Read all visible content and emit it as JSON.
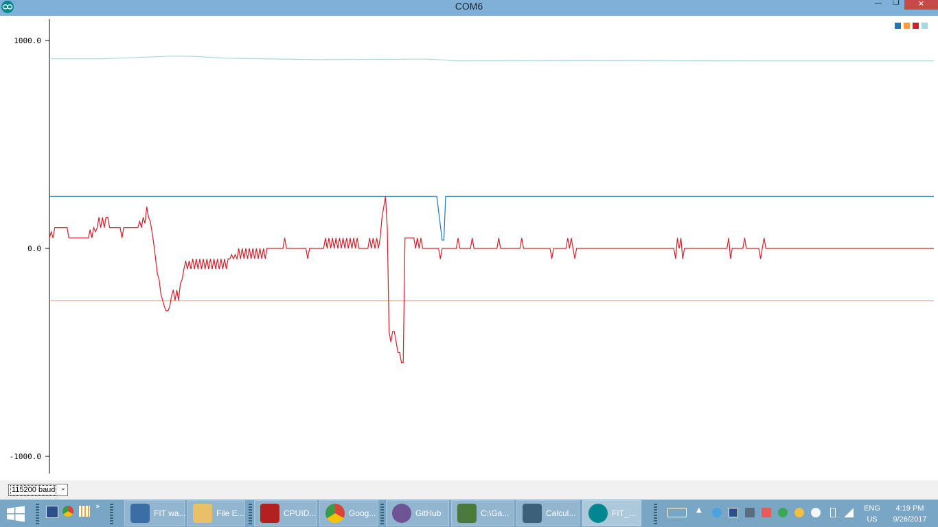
{
  "window": {
    "title": "COM6",
    "min_glyph": "—",
    "max_glyph": "❐",
    "close_glyph": "✕"
  },
  "chart_data": {
    "type": "line",
    "ylim": [
      -1000,
      1000
    ],
    "yticks": [
      "1000.0",
      "0.0",
      "-1000.0"
    ],
    "ytick_values": [
      1000,
      0,
      -1000
    ],
    "grid": false,
    "legend_position": "top-right",
    "samples": 500,
    "series": [
      {
        "color": "#1f77b4",
        "description": "constant with a single dip",
        "points": [
          [
            0,
            250
          ],
          [
            219,
            250
          ],
          [
            222,
            40
          ],
          [
            223,
            40
          ],
          [
            224,
            250
          ],
          [
            500,
            250
          ]
        ]
      },
      {
        "color": "#ff9f40",
        "points": [
          [
            0,
            -250
          ],
          [
            500,
            -250
          ]
        ]
      },
      {
        "color": "#d0202a",
        "points": [
          [
            0,
            50
          ],
          [
            1,
            80
          ],
          [
            2,
            50
          ],
          [
            3,
            100
          ],
          [
            6,
            100
          ],
          [
            8,
            100
          ],
          [
            10,
            100
          ],
          [
            11,
            50
          ],
          [
            15,
            50
          ],
          [
            20,
            50
          ],
          [
            22,
            50
          ],
          [
            23,
            90
          ],
          [
            24,
            50
          ],
          [
            25,
            100
          ],
          [
            26,
            80
          ],
          [
            27,
            100
          ],
          [
            28,
            150
          ],
          [
            29,
            100
          ],
          [
            30,
            150
          ],
          [
            31,
            100
          ],
          [
            32,
            150
          ],
          [
            33,
            150
          ],
          [
            34,
            100
          ],
          [
            40,
            100
          ],
          [
            41,
            50
          ],
          [
            42,
            100
          ],
          [
            50,
            100
          ],
          [
            51,
            130
          ],
          [
            52,
            100
          ],
          [
            53,
            150
          ],
          [
            54,
            120
          ],
          [
            55,
            200
          ],
          [
            56,
            150
          ],
          [
            57,
            130
          ],
          [
            58,
            80
          ],
          [
            59,
            20
          ],
          [
            60,
            -50
          ],
          [
            61,
            -120
          ],
          [
            62,
            -150
          ],
          [
            63,
            -220
          ],
          [
            64,
            -250
          ],
          [
            65,
            -280
          ],
          [
            66,
            -300
          ],
          [
            67,
            -300
          ],
          [
            68,
            -280
          ],
          [
            69,
            -230
          ],
          [
            70,
            -200
          ],
          [
            71,
            -250
          ],
          [
            72,
            -200
          ],
          [
            73,
            -250
          ],
          [
            74,
            -170
          ],
          [
            75,
            -150
          ],
          [
            76,
            -100
          ],
          [
            77,
            -60
          ],
          [
            78,
            -100
          ],
          [
            79,
            -60
          ],
          [
            80,
            -100
          ],
          [
            81,
            -50
          ],
          [
            82,
            -100
          ],
          [
            83,
            -50
          ],
          [
            84,
            -100
          ],
          [
            85,
            -50
          ],
          [
            86,
            -100
          ],
          [
            87,
            -50
          ],
          [
            88,
            -100
          ],
          [
            89,
            -50
          ],
          [
            90,
            -100
          ],
          [
            91,
            -50
          ],
          [
            92,
            -100
          ],
          [
            93,
            -50
          ],
          [
            94,
            -100
          ],
          [
            95,
            -50
          ],
          [
            96,
            -100
          ],
          [
            97,
            -50
          ],
          [
            98,
            -100
          ],
          [
            99,
            -50
          ],
          [
            100,
            -100
          ],
          [
            101,
            -50
          ],
          [
            102,
            -50
          ],
          [
            103,
            -30
          ],
          [
            104,
            -50
          ],
          [
            105,
            -30
          ],
          [
            106,
            -50
          ],
          [
            107,
            0
          ],
          [
            108,
            -50
          ],
          [
            109,
            0
          ],
          [
            110,
            -50
          ],
          [
            111,
            0
          ],
          [
            112,
            -50
          ],
          [
            113,
            0
          ],
          [
            114,
            -50
          ],
          [
            115,
            0
          ],
          [
            116,
            -50
          ],
          [
            117,
            0
          ],
          [
            118,
            -50
          ],
          [
            119,
            0
          ],
          [
            120,
            -50
          ],
          [
            121,
            0
          ],
          [
            122,
            -50
          ],
          [
            123,
            0
          ],
          [
            124,
            0
          ],
          [
            125,
            0
          ],
          [
            130,
            0
          ],
          [
            132,
            0
          ],
          [
            133,
            50
          ],
          [
            134,
            0
          ],
          [
            145,
            0
          ],
          [
            146,
            -50
          ],
          [
            147,
            0
          ],
          [
            155,
            0
          ],
          [
            156,
            50
          ],
          [
            157,
            0
          ],
          [
            158,
            50
          ],
          [
            159,
            0
          ],
          [
            160,
            50
          ],
          [
            161,
            0
          ],
          [
            162,
            50
          ],
          [
            163,
            0
          ],
          [
            164,
            50
          ],
          [
            165,
            0
          ],
          [
            166,
            50
          ],
          [
            167,
            0
          ],
          [
            168,
            50
          ],
          [
            169,
            0
          ],
          [
            170,
            50
          ],
          [
            171,
            0
          ],
          [
            172,
            50
          ],
          [
            173,
            0
          ],
          [
            174,
            50
          ],
          [
            175,
            0
          ],
          [
            180,
            0
          ],
          [
            181,
            50
          ],
          [
            182,
            0
          ],
          [
            183,
            50
          ],
          [
            184,
            0
          ],
          [
            185,
            50
          ],
          [
            186,
            0
          ],
          [
            187,
            50
          ],
          [
            188,
            150
          ],
          [
            189,
            200
          ],
          [
            190,
            250
          ],
          [
            191,
            100
          ],
          [
            192,
            -400
          ],
          [
            193,
            -450
          ],
          [
            194,
            -400
          ],
          [
            195,
            -400
          ],
          [
            196,
            -450
          ],
          [
            197,
            -500
          ],
          [
            198,
            -500
          ],
          [
            199,
            -550
          ],
          [
            200,
            -550
          ],
          [
            201,
            50
          ],
          [
            202,
            50
          ],
          [
            205,
            50
          ],
          [
            206,
            50
          ],
          [
            207,
            0
          ],
          [
            208,
            50
          ],
          [
            209,
            0
          ],
          [
            210,
            50
          ],
          [
            211,
            0
          ],
          [
            213,
            0
          ],
          [
            215,
            0
          ],
          [
            220,
            0
          ],
          [
            221,
            -50
          ],
          [
            222,
            0
          ],
          [
            230,
            0
          ],
          [
            231,
            50
          ],
          [
            232,
            0
          ],
          [
            238,
            0
          ],
          [
            239,
            50
          ],
          [
            240,
            0
          ],
          [
            253,
            0
          ],
          [
            254,
            50
          ],
          [
            255,
            0
          ],
          [
            266,
            0
          ],
          [
            267,
            50
          ],
          [
            268,
            0
          ],
          [
            283,
            0
          ],
          [
            284,
            -50
          ],
          [
            285,
            0
          ],
          [
            292,
            0
          ],
          [
            293,
            50
          ],
          [
            294,
            0
          ],
          [
            295,
            50
          ],
          [
            296,
            0
          ],
          [
            297,
            -50
          ],
          [
            298,
            0
          ],
          [
            353,
            0
          ],
          [
            354,
            -50
          ],
          [
            355,
            50
          ],
          [
            356,
            0
          ],
          [
            357,
            50
          ],
          [
            358,
            -50
          ],
          [
            359,
            0
          ],
          [
            383,
            0
          ],
          [
            384,
            50
          ],
          [
            385,
            -50
          ],
          [
            386,
            0
          ],
          [
            392,
            0
          ],
          [
            393,
            50
          ],
          [
            394,
            0
          ],
          [
            401,
            0
          ],
          [
            402,
            -50
          ],
          [
            403,
            0
          ],
          [
            404,
            50
          ],
          [
            405,
            0
          ],
          [
            500,
            0
          ]
        ]
      },
      {
        "color": "#a9d6e0",
        "points": [
          [
            0,
            912
          ],
          [
            30,
            912
          ],
          [
            55,
            920
          ],
          [
            70,
            925
          ],
          [
            80,
            924
          ],
          [
            100,
            915
          ],
          [
            150,
            908
          ],
          [
            200,
            910
          ],
          [
            215,
            910
          ],
          [
            225,
            905
          ],
          [
            230,
            902
          ],
          [
            300,
            903
          ],
          [
            400,
            902
          ],
          [
            500,
            902
          ]
        ]
      }
    ]
  },
  "baud": {
    "value": "115200 baud",
    "arrow": "⌄"
  },
  "taskbar": {
    "tasks": [
      {
        "label": "FIT wa...",
        "color": "#3b6ea5"
      },
      {
        "label": "File E...",
        "color": "#e8c06a"
      },
      {
        "label": "CPUID...",
        "color": "#b3201f"
      },
      {
        "label": "Goog...",
        "color": "#dd4b3e"
      },
      {
        "label": "GitHub",
        "color": "#6e5494"
      },
      {
        "label": "C:\\Ga...",
        "color": "#4a7a3a"
      },
      {
        "label": "Calcul...",
        "color": "#3c5f7a"
      },
      {
        "label": "FIT_...",
        "color": "#00878f"
      }
    ],
    "lang": [
      "ENG",
      "US"
    ],
    "clock": {
      "time": "4:19 PM",
      "date": "9/26/2017"
    }
  }
}
